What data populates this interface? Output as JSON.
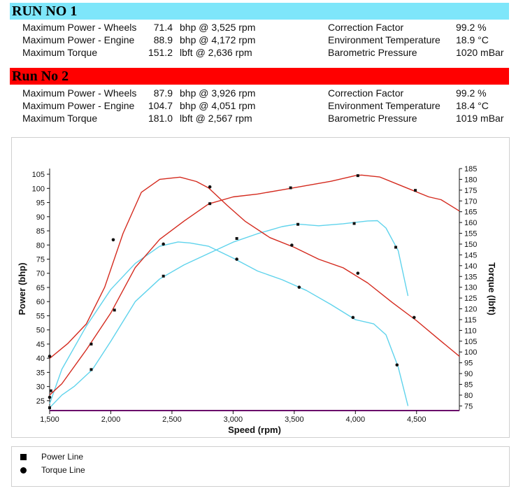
{
  "run1": {
    "title": "RUN NO 1",
    "color": "#7ee6fa",
    "rows": [
      {
        "label": "Maximum Power - Wheels",
        "value": "71.4",
        "unit": "bhp @ 3,525 rpm",
        "clabel": "Correction Factor",
        "cvalue": "99.2 %"
      },
      {
        "label": "Maximum Power - Engine",
        "value": "88.9",
        "unit": "bhp @ 4,172 rpm",
        "clabel": "Environment Temperature",
        "cvalue": "18.9 °C"
      },
      {
        "label": "Maximum Torque",
        "value": "151.2",
        "unit": " lbft @ 2,636 rpm",
        "clabel": "Barometric Pressure",
        "cvalue": "1020 mBar"
      }
    ]
  },
  "run2": {
    "title": "Run No 2",
    "color": "#ff0000",
    "rows": [
      {
        "label": "Maximum Power - Wheels",
        "value": "87.9",
        "unit": "bhp @ 3,926 rpm",
        "clabel": "Correction Factor",
        "cvalue": "99.2 %"
      },
      {
        "label": "Maximum Power - Engine",
        "value": "104.7",
        "unit": "bhp @ 4,051 rpm",
        "clabel": "Environment Temperature",
        "cvalue": "18.4 °C"
      },
      {
        "label": "Maximum Torque",
        "value": "181.0",
        "unit": " lbft @ 2,567 rpm",
        "clabel": "Barometric Pressure",
        "cvalue": "1019 mBar"
      }
    ]
  },
  "legend": [
    {
      "label": "Power Line",
      "marker": "square"
    },
    {
      "label": "Torque Line",
      "marker": "circle"
    }
  ],
  "chart_data": {
    "type": "line",
    "xlabel": "Speed (rpm)",
    "ylabel": "Power (bhp)",
    "y2label": "Torque (lbft)",
    "xlim": [
      1500,
      4850
    ],
    "ylim": [
      22,
      107
    ],
    "y2lim": [
      73.5,
      185
    ],
    "xticks": [
      "1,500",
      "2,000",
      "2,500",
      "3,000",
      "3,500",
      "4,000",
      "4,500"
    ],
    "xtick_values": [
      1500,
      2000,
      2500,
      3000,
      3500,
      4000,
      4500
    ],
    "yticks": [
      25,
      30,
      35,
      40,
      45,
      50,
      55,
      60,
      65,
      70,
      75,
      80,
      85,
      90,
      95,
      100,
      105
    ],
    "y2ticks": [
      75,
      80,
      85,
      90,
      95,
      100,
      105,
      110,
      115,
      120,
      125,
      130,
      135,
      140,
      145,
      150,
      155,
      160,
      165,
      170,
      175,
      180,
      185
    ],
    "grid": false,
    "legend_position": "bottom",
    "series": [
      {
        "name": "Run No 1 Power Line",
        "color": "#5fd3ec",
        "axis": "left",
        "marker": "square",
        "x": [
          1500,
          1600,
          1700,
          1850,
          2000,
          2200,
          2400,
          2600,
          2800,
          3000,
          3200,
          3400,
          3525,
          3700,
          3900,
          4100,
          4180,
          4250,
          4350,
          4430
        ],
        "y": [
          22.5,
          27,
          30,
          36,
          46,
          60,
          68,
          73,
          77,
          81,
          84,
          86.5,
          87.4,
          86.8,
          87.5,
          88.5,
          88.6,
          86,
          78,
          62
        ],
        "marker_x": [
          1500,
          1840,
          2430,
          3030,
          3530,
          3990,
          4330
        ],
        "marker_y": [
          22.5,
          36,
          69,
          82.3,
          87.3,
          87.6,
          79.2
        ]
      },
      {
        "name": "Run No 1 Torque Line",
        "color": "#5fd3ec",
        "axis": "right",
        "marker": "circle",
        "x": [
          1500,
          1600,
          1800,
          2000,
          2200,
          2400,
          2550,
          2650,
          2800,
          3000,
          3200,
          3400,
          3600,
          3800,
          4000,
          4150,
          4250,
          4350,
          4430
        ],
        "y": [
          76,
          92,
          112,
          129,
          141,
          149,
          151,
          150.5,
          149,
          143.5,
          137.5,
          133.5,
          128.5,
          122,
          115,
          113,
          108,
          93,
          75
        ],
        "marker_x": [
          1500,
          2430,
          3030,
          3540,
          3980,
          4340
        ],
        "marker_y": [
          79,
          150,
          143,
          130,
          116,
          94
        ]
      },
      {
        "name": "Run No 2 Power Line",
        "color": "#d42a1e",
        "axis": "left",
        "marker": "square",
        "x": [
          1500,
          1600,
          1800,
          2000,
          2200,
          2400,
          2600,
          2800,
          3000,
          3200,
          3400,
          3600,
          3800,
          4000,
          4050,
          4200,
          4400,
          4600,
          4700,
          4850
        ],
        "y": [
          27,
          31,
          43,
          56,
          72,
          82,
          88.5,
          94.5,
          97,
          98,
          99.5,
          101,
          102.5,
          104.5,
          104.7,
          104,
          100.5,
          97,
          96,
          92
        ],
        "marker_x": [
          1510,
          1840,
          2030,
          2810,
          3470,
          4020,
          4490
        ],
        "marker_y": [
          28.5,
          45,
          57,
          94.6,
          100.2,
          104.5,
          99.3
        ]
      },
      {
        "name": "Run No 2 Torque Line",
        "color": "#d42a1e",
        "axis": "right",
        "marker": "circle",
        "x": [
          1500,
          1650,
          1800,
          1950,
          2100,
          2250,
          2400,
          2567,
          2700,
          2800,
          2950,
          3100,
          3300,
          3500,
          3700,
          3900,
          4100,
          4300,
          4500,
          4700,
          4850
        ],
        "y": [
          97,
          104,
          113,
          130,
          155,
          174,
          180,
          181,
          179,
          176,
          168,
          160.5,
          153,
          148.5,
          143,
          139,
          132,
          123,
          114.5,
          105,
          98
        ],
        "marker_x": [
          1500,
          2020,
          2810,
          3480,
          4020,
          4480
        ],
        "marker_y": [
          98,
          152,
          176.5,
          149.5,
          136.5,
          116
        ]
      }
    ]
  }
}
